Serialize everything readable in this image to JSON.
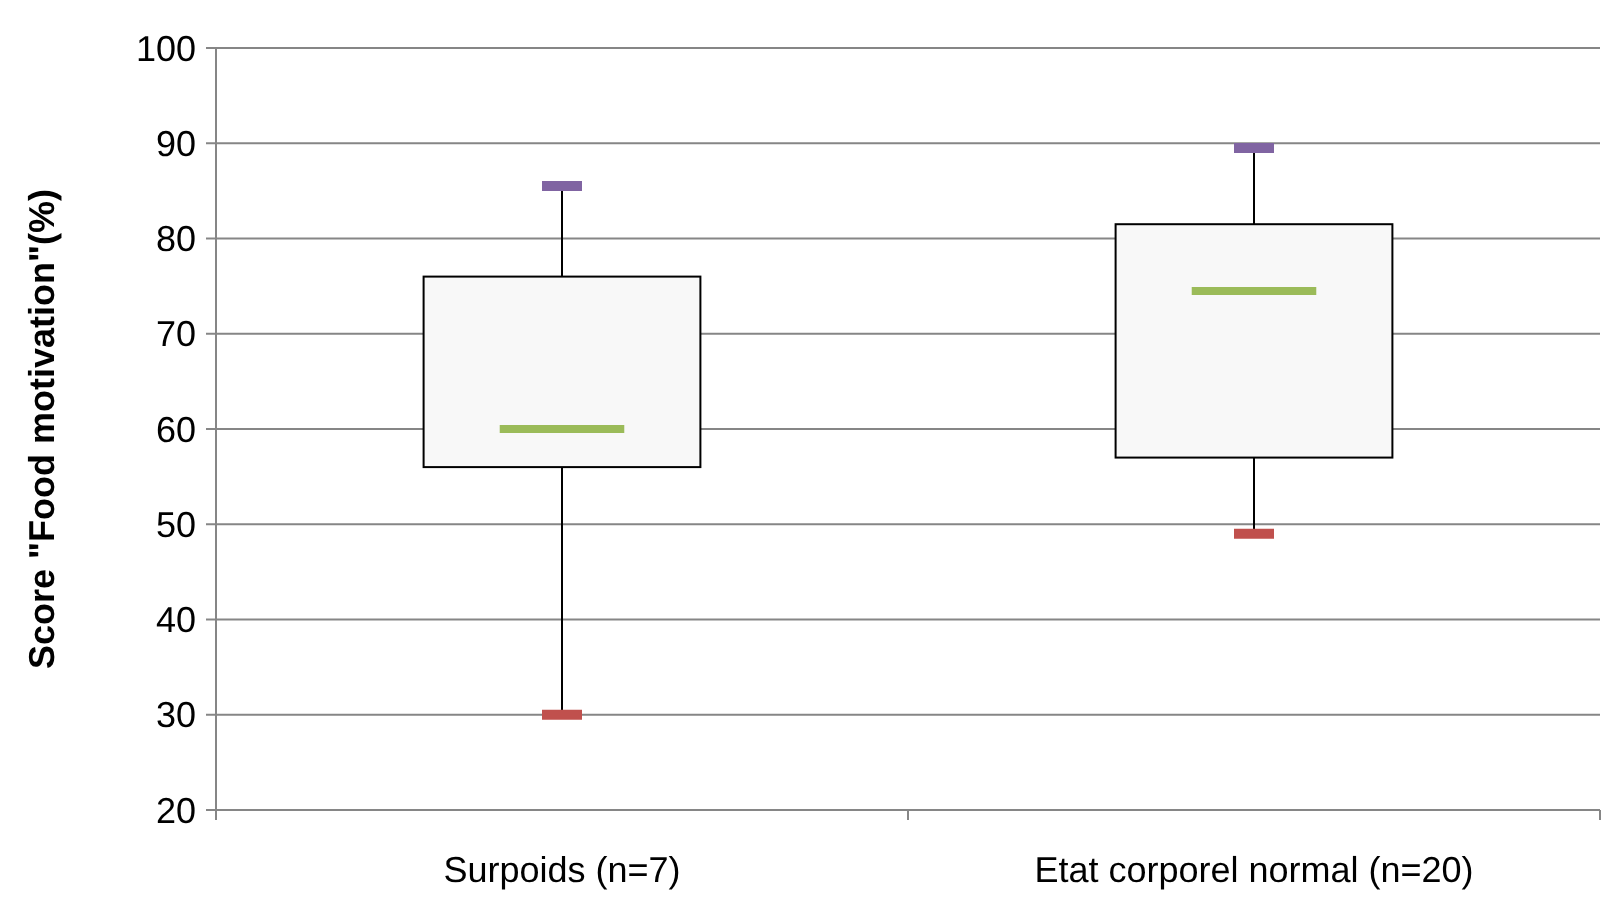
{
  "chart_data": {
    "type": "box",
    "ylabel": "Score \"Food motivation\"(%)",
    "categories": [
      "Surpoids (n=7)",
      "Etat corporel normal (n=20)"
    ],
    "series": [
      {
        "color": "#f8f8f8",
        "boxes": [
          {
            "low": 30,
            "q1": 56,
            "median": 60,
            "q3": 76,
            "high": 85.5
          },
          {
            "low": 49,
            "q1": 57,
            "median": 74.5,
            "q3": 81.5,
            "high": 89.5
          }
        ]
      }
    ],
    "ylim": [
      20,
      100
    ],
    "yticks": [
      20,
      30,
      40,
      50,
      60,
      70,
      80,
      90,
      100
    ],
    "grid": "y"
  }
}
